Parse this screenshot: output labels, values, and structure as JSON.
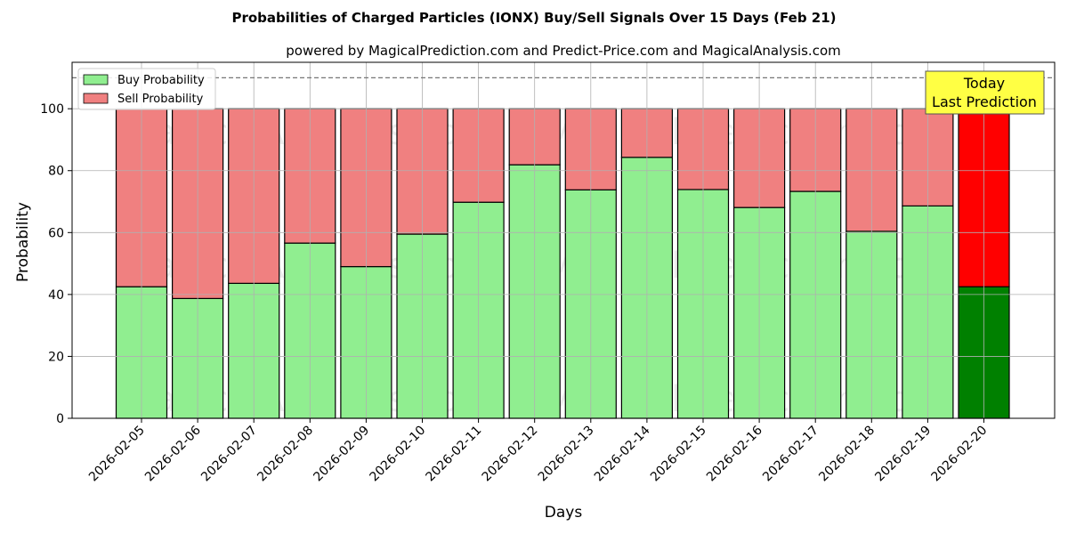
{
  "chart_data": {
    "type": "bar",
    "stacked": true,
    "title": "Probabilities of Charged Particles (IONX) Buy/Sell Signals Over 15 Days (Feb 21)",
    "subtitle": "powered by MagicalPrediction.com and Predict-Price.com and MagicalAnalysis.com",
    "xlabel": "Days",
    "ylabel": "Probability",
    "ylim": [
      0,
      115
    ],
    "yticks": [
      0,
      20,
      40,
      60,
      80,
      100
    ],
    "grid": true,
    "legend_position": "top-left",
    "reference_line": 110,
    "categories": [
      "2026-02-05",
      "2026-02-06",
      "2026-02-07",
      "2026-02-08",
      "2026-02-09",
      "2026-02-10",
      "2026-02-11",
      "2026-02-12",
      "2026-02-13",
      "2026-02-14",
      "2026-02-15",
      "2026-02-16",
      "2026-02-17",
      "2026-02-18",
      "2026-02-19",
      "2026-02-20"
    ],
    "series": [
      {
        "name": "Buy Probability",
        "color": "#90ee90",
        "values": [
          42.5,
          38.7,
          43.6,
          56.6,
          49.0,
          59.5,
          69.8,
          81.9,
          73.8,
          84.3,
          73.9,
          68.1,
          73.3,
          60.4,
          68.6,
          42.5
        ]
      },
      {
        "name": "Sell Probability",
        "color": "#f08080",
        "values": [
          57.5,
          61.3,
          56.4,
          43.4,
          51.0,
          40.5,
          30.2,
          18.1,
          26.2,
          15.7,
          26.1,
          31.9,
          26.7,
          39.6,
          31.4,
          57.5
        ]
      }
    ],
    "highlight": {
      "index": 15,
      "buy_color": "#008000",
      "sell_color": "#ff0000"
    },
    "annotation": {
      "lines": [
        "Today",
        "Last Prediction"
      ],
      "color": "#ffff44"
    },
    "watermarks": [
      "MagicalAnalysis.com",
      "MagicalPrediction.com"
    ]
  }
}
